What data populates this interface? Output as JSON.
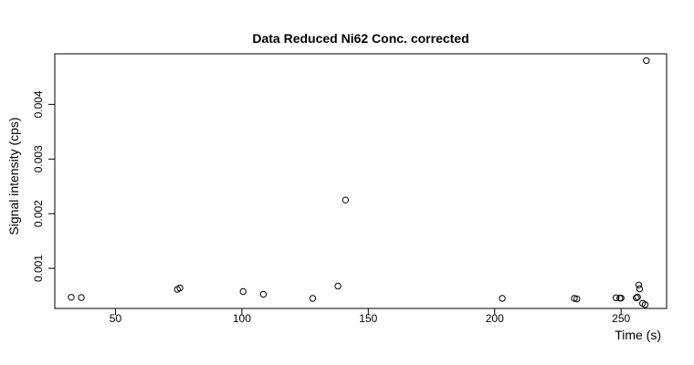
{
  "chart_data": {
    "type": "scatter",
    "title": "Data Reduced Ni62 Conc. corrected",
    "xlabel": "Time (s)",
    "ylabel": "Signal intensity (cps)",
    "xlim": [
      26,
      268
    ],
    "ylim": [
      0.000266,
      0.004925
    ],
    "x_ticks": [
      50,
      100,
      150,
      200,
      250
    ],
    "x_tick_labels": [
      "50",
      "100",
      "150",
      "200",
      "250"
    ],
    "y_ticks": [
      0.001,
      0.002,
      0.003,
      0.004
    ],
    "y_tick_labels": [
      "0.001",
      "0.002",
      "0.003",
      "0.004"
    ],
    "grid": false,
    "marker": "open-circle",
    "series": [
      {
        "points": [
          {
            "x": 32.5,
            "y": 0.00047
          },
          {
            "x": 36.5,
            "y": 0.000465
          },
          {
            "x": 74.5,
            "y": 0.000615
          },
          {
            "x": 75.5,
            "y": 0.00064
          },
          {
            "x": 100.5,
            "y": 0.000575
          },
          {
            "x": 108.5,
            "y": 0.000525
          },
          {
            "x": 128,
            "y": 0.00045
          },
          {
            "x": 138,
            "y": 0.000675
          },
          {
            "x": 141,
            "y": 0.00225
          },
          {
            "x": 203,
            "y": 0.00045
          },
          {
            "x": 231.5,
            "y": 0.00045
          },
          {
            "x": 232.5,
            "y": 0.00044
          },
          {
            "x": 248,
            "y": 0.00046
          },
          {
            "x": 249.5,
            "y": 0.000455
          },
          {
            "x": 250,
            "y": 0.000455
          },
          {
            "x": 256,
            "y": 0.00046
          },
          {
            "x": 256.5,
            "y": 0.000475
          },
          {
            "x": 257,
            "y": 0.000695
          },
          {
            "x": 257.3,
            "y": 0.000625
          },
          {
            "x": 258.5,
            "y": 0.00036
          },
          {
            "x": 259.5,
            "y": 0.000335
          },
          {
            "x": 260,
            "y": 0.0048
          }
        ]
      }
    ]
  }
}
